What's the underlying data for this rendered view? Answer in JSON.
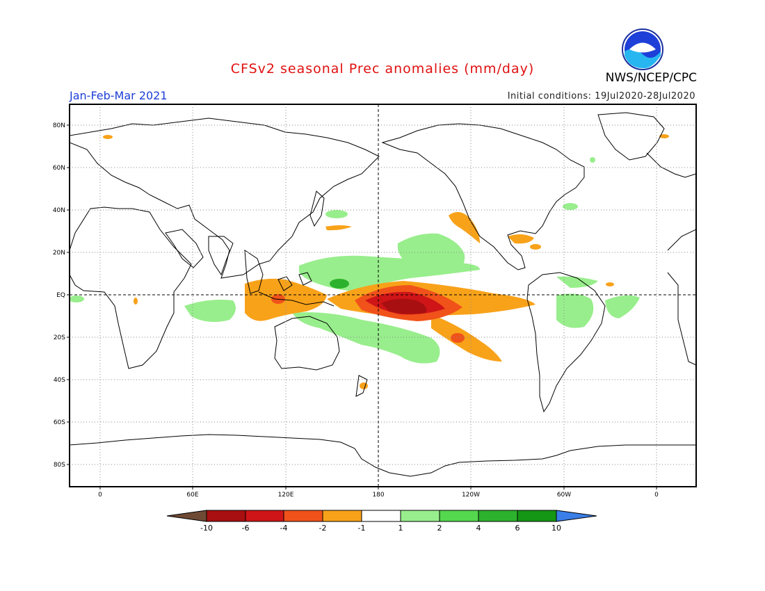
{
  "header": {
    "title": "CFSv2 seasonal Prec anomalies (mm/day)",
    "period": "Jan-Feb-Mar 2021",
    "initial_conditions": "Initial conditions: 19Jul2020-28Jul2020",
    "agency": "NWS/NCEP/CPC",
    "logo_text": "NOAA"
  },
  "map": {
    "lat_ticks": [
      "80N",
      "60N",
      "40N",
      "20N",
      "EQ",
      "20S",
      "40S",
      "60S",
      "80S"
    ],
    "lon_ticks": [
      "0",
      "60E",
      "120E",
      "180",
      "120W",
      "60W",
      "0"
    ],
    "lat_values": [
      80,
      60,
      40,
      20,
      0,
      -20,
      -40,
      -60,
      -80
    ],
    "lon_values": [
      0,
      60,
      120,
      180,
      240,
      300,
      360
    ]
  },
  "legend": {
    "labels": [
      "-10",
      "-6",
      "-4",
      "-2",
      "-1",
      "1",
      "2",
      "4",
      "6",
      "10"
    ],
    "colors": [
      "#6e4a34",
      "#a80f10",
      "#cf1518",
      "#f0521a",
      "#f8a21a",
      "#ffffff",
      "#98ee8c",
      "#54d84e",
      "#2cb22c",
      "#149714",
      "#3a7ee8"
    ]
  },
  "colors": {
    "title": "#e01010",
    "period": "#1c3fd6",
    "land_outline": "#000000",
    "grid": "#8a8a8a"
  }
}
